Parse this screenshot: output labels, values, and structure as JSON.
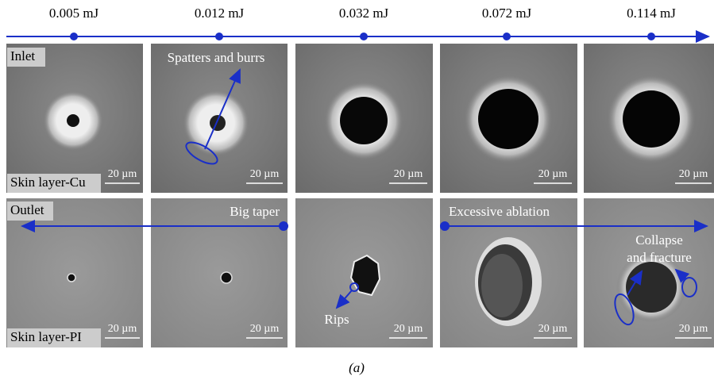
{
  "energies": [
    "0.005 mJ",
    "0.012 mJ",
    "0.032 mJ",
    "0.072 mJ",
    "0.114 mJ"
  ],
  "rows": [
    {
      "side": "Inlet",
      "layer": "Skin layer-Cu"
    },
    {
      "side": "Outlet",
      "layer": "Skin layer-PI"
    }
  ],
  "scale_bar": "20 µm",
  "annotations": {
    "spatters": "Spatters and burrs",
    "taper": "Big taper",
    "rips": "Rips",
    "ablation": "Excessive ablation",
    "collapse": [
      "Collapse",
      "and fracture"
    ]
  },
  "caption": "(a)"
}
